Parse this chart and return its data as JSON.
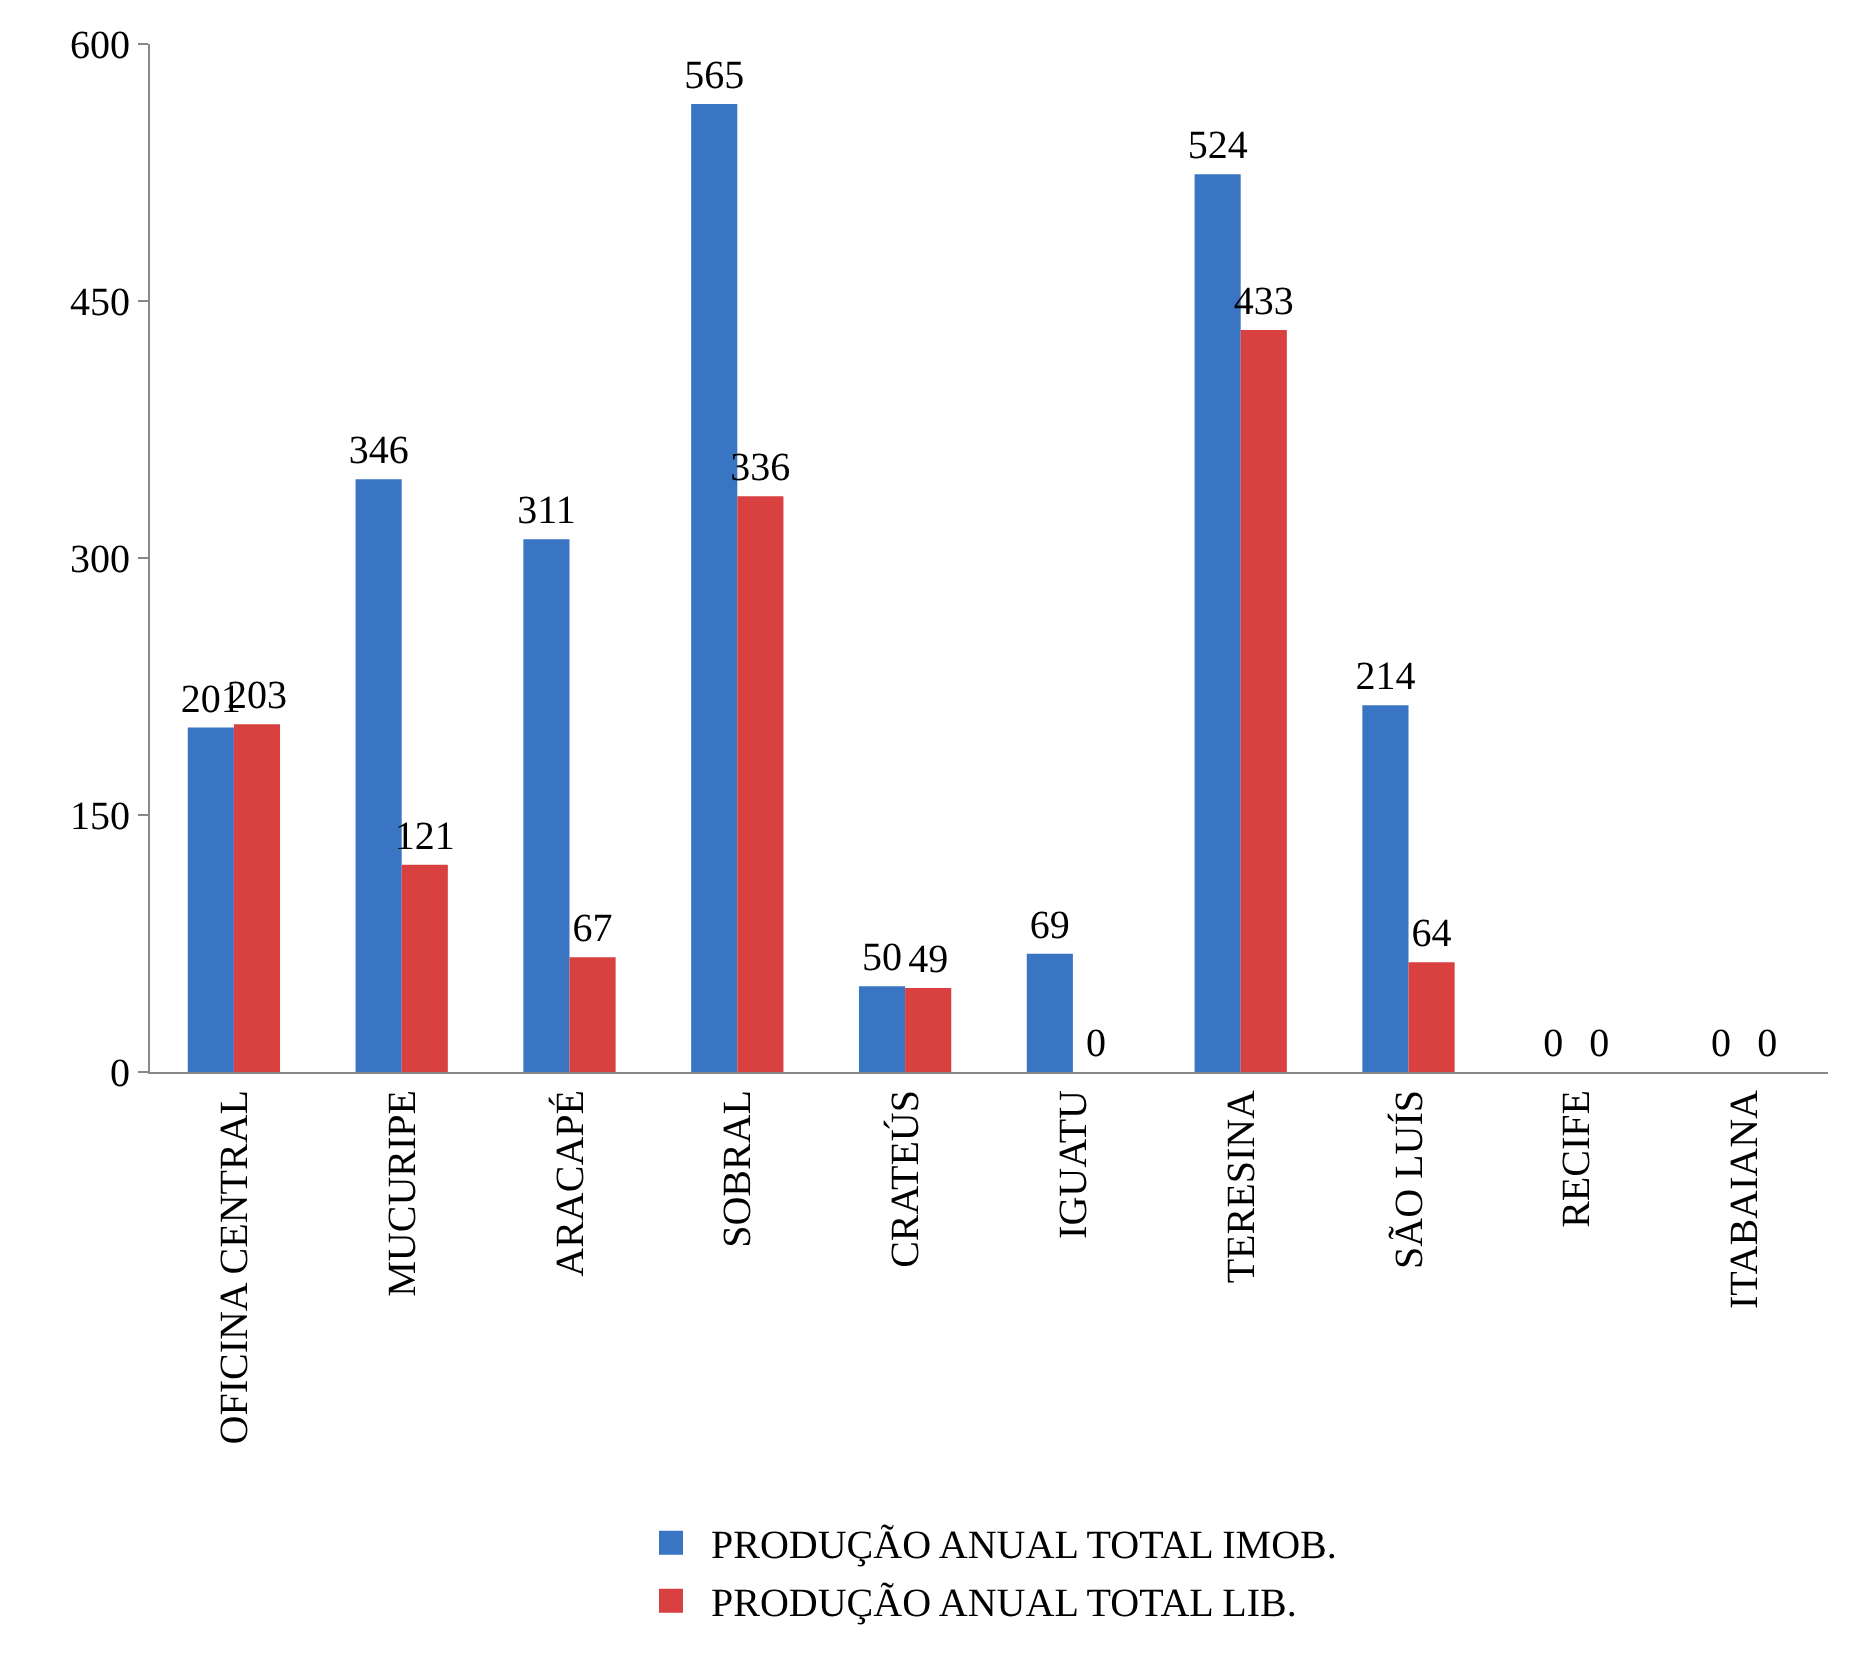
{
  "chart_data": {
    "type": "bar",
    "categories": [
      "OFICINA CENTRAL",
      "MUCURIPE",
      "ARACAPÉ",
      "SOBRAL",
      "CRATEÚS",
      "IGUATU",
      "TERESINA",
      "SÃO LUÍS",
      "RECIFE",
      "ITABAIANA"
    ],
    "series": [
      {
        "name": "PRODUÇÃO ANUAL TOTAL IMOB.",
        "color": "#3a75c4",
        "values": [
          201,
          346,
          311,
          565,
          50,
          69,
          524,
          214,
          0,
          0
        ]
      },
      {
        "name": "PRODUÇÃO ANUAL TOTAL LIB.",
        "color": "#d94040",
        "values": [
          203,
          121,
          67,
          336,
          49,
          0,
          433,
          64,
          0,
          0
        ]
      }
    ],
    "ylim": [
      0,
      600
    ],
    "yticks": [
      0,
      150,
      300,
      450,
      600
    ],
    "legend": "bottom",
    "data_labels": true
  }
}
